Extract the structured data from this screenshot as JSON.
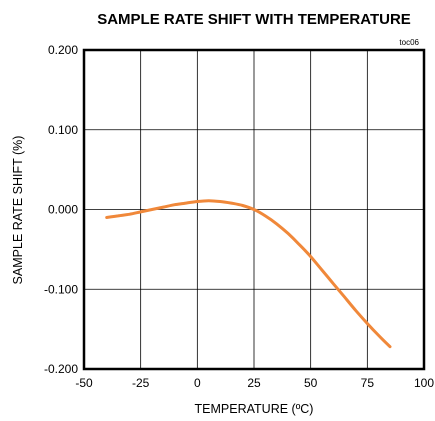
{
  "chart_data": {
    "type": "line",
    "title": "SAMPLE RATE SHIFT WITH TEMPERATURE",
    "tag": "toc06",
    "xlabel": "TEMPERATURE (ºC)",
    "ylabel": "SAMPLE RATE SHIFT (%)",
    "xlim": [
      -50,
      100
    ],
    "ylim": [
      -0.2,
      0.2
    ],
    "xticks": [
      -50,
      -25,
      0,
      25,
      50,
      75,
      100
    ],
    "yticks": [
      0.2,
      0.1,
      0.0,
      -0.1,
      -0.2
    ],
    "xtick_labels": [
      "-50",
      "-25",
      "0",
      "25",
      "50",
      "75",
      "100"
    ],
    "ytick_labels": [
      "0.200",
      "0.100",
      "0.000",
      "-0.100",
      "-0.200"
    ],
    "grid": true,
    "line_color": "#f0883a",
    "series": [
      {
        "x": [
          -40,
          -35,
          -30,
          -25,
          -20,
          -15,
          -10,
          -5,
          0,
          5,
          10,
          15,
          20,
          25,
          30,
          35,
          40,
          45,
          50,
          55,
          60,
          65,
          70,
          75,
          80,
          85
        ],
        "y": [
          -0.01,
          -0.008,
          -0.006,
          -0.003,
          0.0,
          0.003,
          0.006,
          0.008,
          0.01,
          0.011,
          0.01,
          0.008,
          0.005,
          0.0,
          -0.008,
          -0.018,
          -0.03,
          -0.044,
          -0.059,
          -0.076,
          -0.093,
          -0.11,
          -0.127,
          -0.143,
          -0.158,
          -0.172
        ]
      }
    ]
  }
}
